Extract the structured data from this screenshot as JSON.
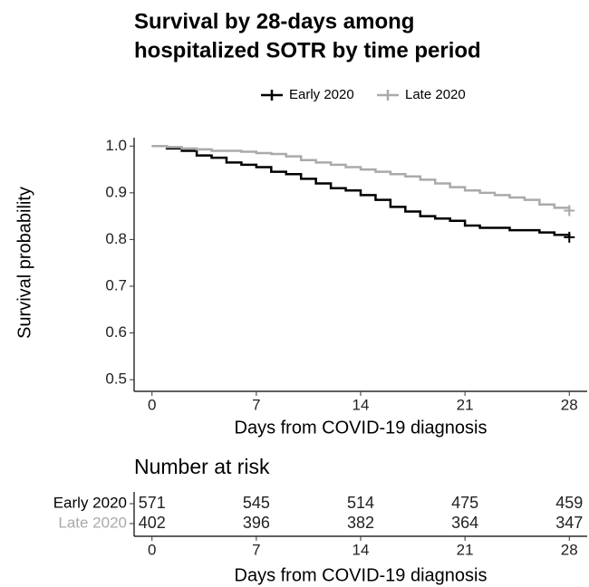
{
  "chart_data": [
    {
      "type": "step",
      "title": [
        "Survival by 28-days among",
        "hospitalized SOTR by time period"
      ],
      "xlabel": "Days from COVID-19 diagnosis",
      "ylabel": "Survival probability",
      "legend": "top",
      "x": [
        0,
        1,
        2,
        3,
        4,
        5,
        6,
        7,
        8,
        9,
        10,
        11,
        12,
        13,
        14,
        15,
        16,
        17,
        18,
        19,
        20,
        21,
        22,
        23,
        24,
        25,
        26,
        27,
        28
      ],
      "series": [
        {
          "name": "Early 2020",
          "color": "#000000",
          "values": [
            1.0,
            0.995,
            0.99,
            0.98,
            0.975,
            0.965,
            0.96,
            0.955,
            0.945,
            0.94,
            0.93,
            0.92,
            0.91,
            0.905,
            0.895,
            0.885,
            0.87,
            0.86,
            0.85,
            0.845,
            0.84,
            0.83,
            0.825,
            0.825,
            0.82,
            0.82,
            0.815,
            0.81,
            0.805
          ]
        },
        {
          "name": "Late 2020",
          "color": "#aaaaaa",
          "values": [
            1.0,
            0.998,
            0.995,
            0.993,
            0.99,
            0.99,
            0.988,
            0.985,
            0.983,
            0.978,
            0.97,
            0.965,
            0.96,
            0.955,
            0.95,
            0.945,
            0.94,
            0.935,
            0.928,
            0.92,
            0.912,
            0.905,
            0.9,
            0.895,
            0.89,
            0.885,
            0.875,
            0.868,
            0.862
          ]
        }
      ],
      "xlim": [
        -1.2,
        29.2
      ],
      "xticks": [
        0,
        7,
        14,
        21,
        28
      ],
      "ylim": [
        0.475,
        1.018
      ],
      "yticks": [
        0.5,
        0.6,
        0.7,
        0.8,
        0.9,
        {
          "value": 1.0,
          "label": "1.0"
        }
      ]
    },
    {
      "type": "table",
      "title": "Number at risk",
      "xlabel": "Days from COVID-19 diagnosis",
      "x": [
        0,
        7,
        14,
        21,
        28
      ],
      "series": [
        {
          "name": "Early 2020",
          "color": "#000000",
          "values": [
            571,
            545,
            514,
            475,
            459
          ]
        },
        {
          "name": "Late 2020",
          "color": "#aaaaaa",
          "values": [
            402,
            396,
            382,
            364,
            347
          ]
        }
      ],
      "xlim": [
        -1.2,
        29.2
      ],
      "xticks": [
        0,
        7,
        14,
        21,
        28
      ]
    }
  ]
}
